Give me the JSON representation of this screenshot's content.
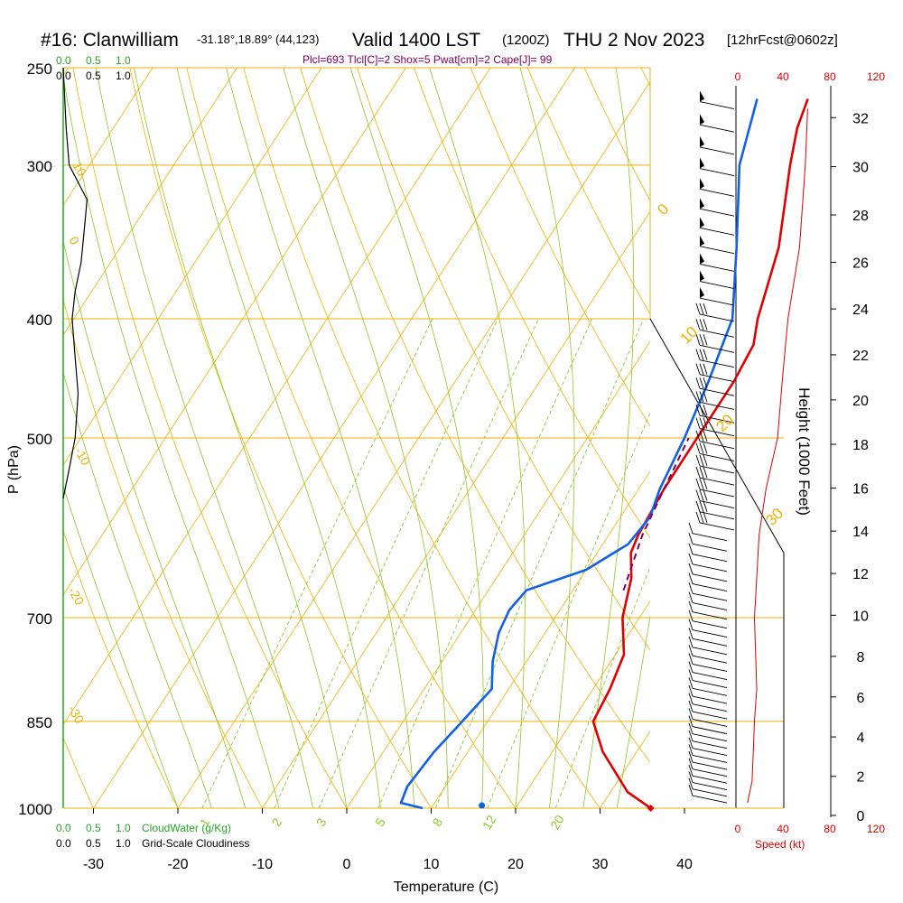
{
  "header": {
    "station": "#16: Clanwilliam",
    "coords": "-31.18°,18.89° (44,123)",
    "valid": "Valid 1400 LST",
    "zulu": "(1200Z)",
    "date": "THU 2 Nov 2023",
    "fcst": "[12hrFcst@0602z]"
  },
  "indices": "Plcl=693 Tlcl[C]=2 Shox=5 Pwat[cm]=2 Cape[J]= 99",
  "colors": {
    "temperature": "#e00000",
    "dewpoint": "#1060e8",
    "parcel": "#800060",
    "isobar_isotherm": "#f0b000",
    "mixing_ratio": "#8cc828",
    "cloudwater": "#22aa22",
    "speed": "#e00000",
    "dewpoint_dot": "#1060e8"
  },
  "left_scale_top": {
    "green": [
      "0.0",
      "0.5",
      "1.0"
    ],
    "black": [
      "0.0",
      "0.5",
      "1.0"
    ]
  },
  "left_scale_bottom": {
    "green": [
      "0.0",
      "0.5",
      "1.0"
    ],
    "green_label": "CloudWater (g/Kg)",
    "black": [
      "0.0",
      "0.5",
      "1.0"
    ],
    "black_label": "Grid-Scale Cloudiness"
  },
  "speed_axis": {
    "top": [
      "0",
      "40",
      "80",
      "120"
    ],
    "bottom": [
      "0",
      "40",
      "80",
      "120"
    ],
    "label": "Speed (kt)"
  },
  "chart_data": {
    "type": "line",
    "xlabel": "Temperature (C)",
    "ylabel": "P (hPa)",
    "y2label": "Height (1000 Feet)",
    "x_ticks": [
      "-30",
      "-20",
      "-10",
      "0",
      "10",
      "20",
      "30",
      "40"
    ],
    "pressure_ticks": [
      "250",
      "300",
      "400",
      "500",
      "700",
      "850",
      "1000"
    ],
    "height_ticks": [
      "0",
      "2",
      "4",
      "6",
      "8",
      "10",
      "12",
      "14",
      "16",
      "18",
      "20",
      "22",
      "24",
      "26",
      "28",
      "30",
      "32"
    ],
    "mixing_ratio_labels": [
      "1",
      "2",
      "3",
      "5",
      "8",
      "12",
      "20"
    ],
    "theta_labels_left": [
      "10",
      "0",
      "-10",
      "-20",
      "-30"
    ],
    "theta_labels_right": [
      "0",
      "10",
      "20",
      "30"
    ],
    "series": [
      {
        "key": "temperature",
        "points": [
          [
            1000,
            36
          ],
          [
            970,
            32
          ],
          [
            900,
            26
          ],
          [
            850,
            22.5
          ],
          [
            800,
            22
          ],
          [
            750,
            21
          ],
          [
            700,
            18
          ],
          [
            650,
            16
          ],
          [
            620,
            14
          ],
          [
            600,
            13.5
          ],
          [
            550,
            13
          ],
          [
            500,
            13
          ],
          [
            450,
            13
          ],
          [
            420,
            12.5
          ],
          [
            400,
            11
          ],
          [
            350,
            8
          ],
          [
            300,
            3
          ],
          [
            280,
            1
          ],
          [
            265,
            0
          ]
        ]
      },
      {
        "key": "dewpoint",
        "points": [
          [
            1000,
            9
          ],
          [
            990,
            6
          ],
          [
            960,
            5.5
          ],
          [
            900,
            6
          ],
          [
            850,
            7
          ],
          [
            800,
            8
          ],
          [
            760,
            6
          ],
          [
            720,
            4.5
          ],
          [
            690,
            4
          ],
          [
            665,
            4.5
          ],
          [
            640,
            10
          ],
          [
            610,
            13
          ],
          [
            580,
            13.5
          ],
          [
            550,
            12.5
          ],
          [
            500,
            11.5
          ],
          [
            450,
            10
          ],
          [
            400,
            8
          ],
          [
            350,
            3
          ],
          [
            300,
            -3
          ],
          [
            265,
            -6
          ]
        ]
      },
      {
        "key": "parcel",
        "points": [
          [
            665,
            16
          ],
          [
            600,
            14
          ],
          [
            550,
            13
          ],
          [
            500,
            12
          ]
        ]
      }
    ],
    "surface_dewpoint_dot": {
      "p": 1000,
      "t": 16
    },
    "cloudiness_profile": [
      [
        250,
        0
      ],
      [
        280,
        0.05
      ],
      [
        300,
        0.1
      ],
      [
        320,
        0.4
      ],
      [
        340,
        0.35
      ],
      [
        360,
        0.3
      ],
      [
        380,
        0.2
      ],
      [
        400,
        0.15
      ],
      [
        430,
        0.2
      ],
      [
        460,
        0.25
      ],
      [
        500,
        0.2
      ],
      [
        530,
        0.1
      ],
      [
        560,
        0
      ]
    ],
    "wind_speed_kt": [
      [
        990,
        10
      ],
      [
        950,
        14
      ],
      [
        900,
        15
      ],
      [
        850,
        16
      ],
      [
        800,
        18
      ],
      [
        750,
        17
      ],
      [
        700,
        16
      ],
      [
        650,
        18
      ],
      [
        600,
        20
      ],
      [
        550,
        26
      ],
      [
        500,
        36
      ],
      [
        450,
        40
      ],
      [
        400,
        45
      ],
      [
        350,
        55
      ],
      [
        300,
        60
      ],
      [
        270,
        62
      ]
    ]
  }
}
